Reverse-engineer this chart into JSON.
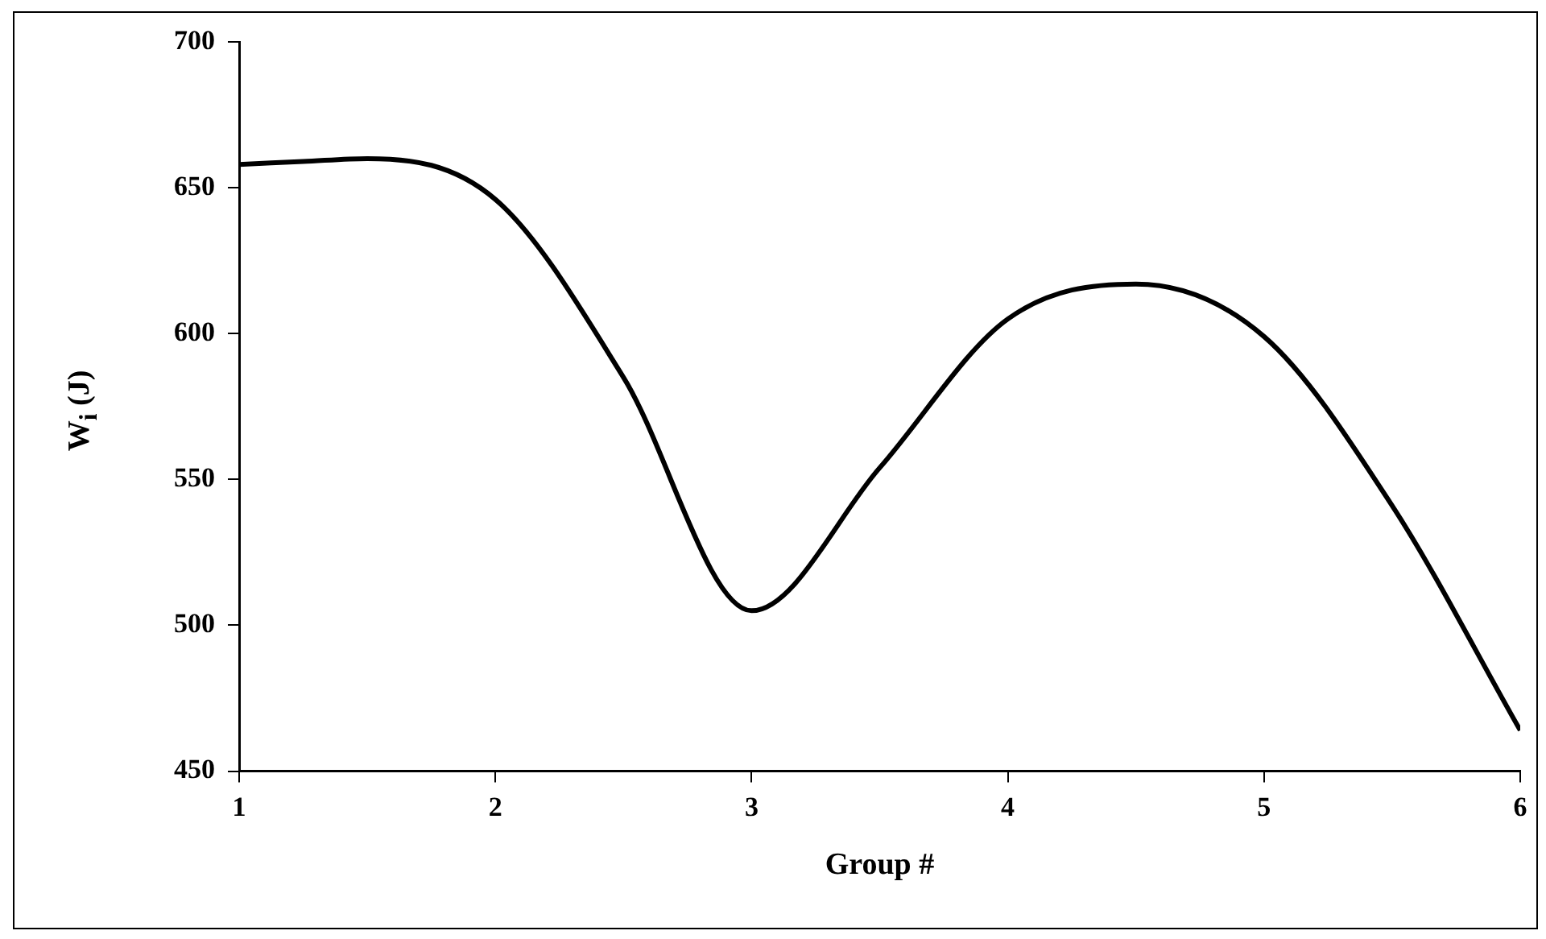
{
  "chart_data": {
    "type": "line",
    "xlabel": "Group #",
    "ylabel": "W$_{i}$ (J)",
    "x": [
      1,
      1.25,
      1.5,
      2,
      2.5,
      3,
      3.5,
      4,
      4.5,
      5,
      5.5,
      6
    ],
    "series": [
      {
        "color": "#000000",
        "values": [
          658,
          659,
          660,
          646,
          585,
          505,
          554,
          605,
          617,
          599,
          541,
          464
        ]
      }
    ],
    "xlim": [
      1,
      6
    ],
    "xticks": [
      1,
      2,
      3,
      4,
      5,
      6
    ],
    "ylim": [
      450,
      700
    ],
    "yticks": [
      450,
      500,
      550,
      600,
      650,
      700
    ],
    "grid": false,
    "legend": false,
    "marker": "none",
    "line_style": "solid"
  }
}
